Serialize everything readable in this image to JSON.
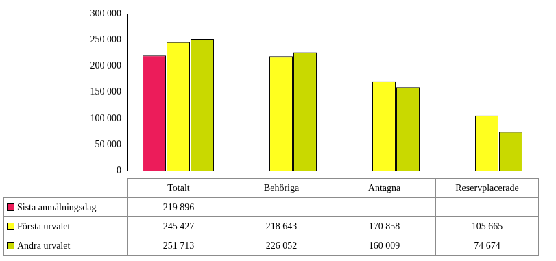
{
  "chart_data": {
    "type": "bar",
    "categories": [
      "Totalt",
      "Behöriga",
      "Antagna",
      "Reservplacerade"
    ],
    "series": [
      {
        "name": "Sista anmälningsdag",
        "color": "#ec1c5a",
        "values": [
          219896,
          null,
          null,
          null
        ],
        "value_labels": [
          "219 896",
          null,
          null,
          null
        ]
      },
      {
        "name": "Första urvalet",
        "color": "#ffff1f",
        "values": [
          245427,
          218643,
          170858,
          105665
        ],
        "value_labels": [
          "245 427",
          "218 643",
          "170 858",
          "105 665"
        ]
      },
      {
        "name": "Andra urvalet",
        "color": "#c9d900",
        "values": [
          251713,
          226052,
          160009,
          74674
        ],
        "value_labels": [
          "251 713",
          "226 052",
          "160 009",
          "74 674"
        ]
      }
    ],
    "ylim": [
      0,
      300000
    ],
    "yticks": [
      {
        "value": 0,
        "label": "0"
      },
      {
        "value": 50000,
        "label": "50 000"
      },
      {
        "value": 100000,
        "label": "100 000"
      },
      {
        "value": 150000,
        "label": "150 000"
      },
      {
        "value": 200000,
        "label": "200 000"
      },
      {
        "value": 250000,
        "label": "250 000"
      },
      {
        "value": 300000,
        "label": "300 000"
      }
    ],
    "grid": false
  }
}
